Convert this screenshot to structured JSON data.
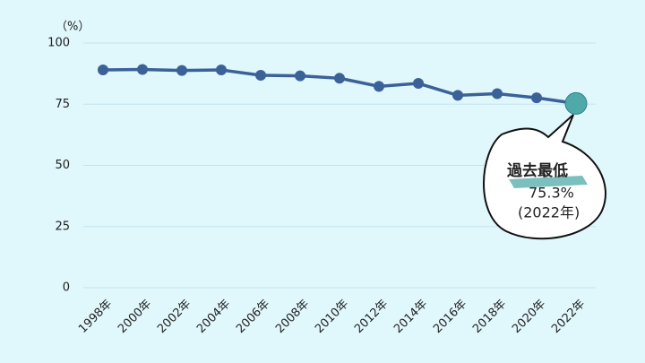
{
  "chart_data": {
    "type": "line",
    "unit_label": "（%）",
    "categories": [
      "1998年",
      "2000年",
      "2002年",
      "2004年",
      "2006年",
      "2008年",
      "2010年",
      "2012年",
      "2014年",
      "2016年",
      "2018年",
      "2020年",
      "2022年"
    ],
    "series": [
      {
        "name": "rate",
        "color": "#3b6199",
        "values": [
          89.0,
          89.2,
          88.8,
          89.0,
          86.8,
          86.6,
          85.6,
          82.3,
          83.5,
          78.6,
          79.3,
          77.6,
          75.3
        ],
        "value_labels": [
          null,
          null,
          null,
          null,
          null,
          null,
          null,
          null,
          null,
          null,
          null,
          null,
          "75.3%"
        ]
      }
    ],
    "highlight_color": "#4fa9a9",
    "annotation": {
      "title": "過去最低",
      "period": "(2022年)"
    },
    "ylim": [
      0,
      100
    ],
    "yticks": [
      0,
      25,
      50,
      75,
      100
    ],
    "grid": true
  }
}
